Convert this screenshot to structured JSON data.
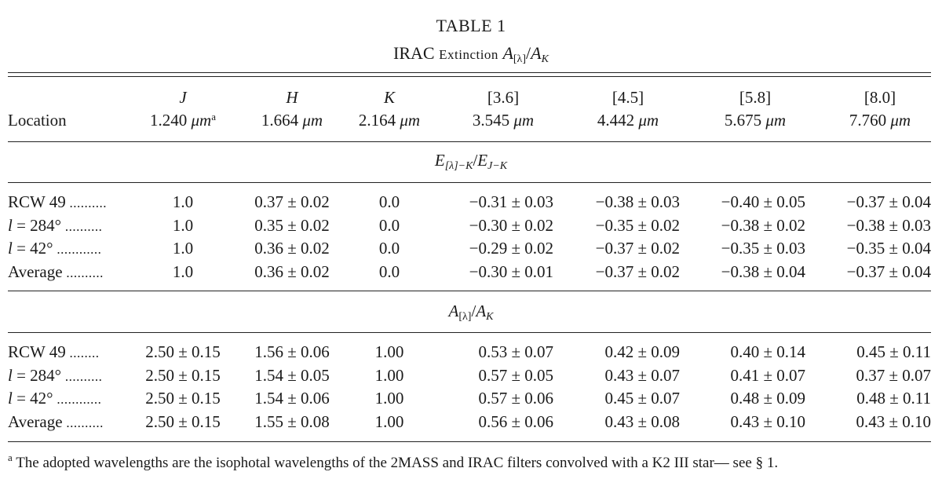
{
  "title": "TABLE 1",
  "subtitle": {
    "lead": "IRAC ",
    "smallcaps": "Extinction",
    "formula_a": "A",
    "formula_a_sub": "[λ]",
    "slash": "/",
    "formula_k": "A",
    "formula_k_sub": "K"
  },
  "header": {
    "location": "Location",
    "columns": [
      {
        "band": "J",
        "wl": "1.240",
        "unit": "μm",
        "note": "a"
      },
      {
        "band": "H",
        "wl": "1.664",
        "unit": "μm"
      },
      {
        "band": "K",
        "wl": "2.164",
        "unit": "μm"
      },
      {
        "band": "[3.6]",
        "wl": "3.545",
        "unit": "μm"
      },
      {
        "band": "[4.5]",
        "wl": "4.442",
        "unit": "μm"
      },
      {
        "band": "[5.8]",
        "wl": "5.675",
        "unit": "μm"
      },
      {
        "band": "[8.0]",
        "wl": "7.760",
        "unit": "μm"
      }
    ]
  },
  "section1": {
    "e": "E",
    "e_sub": "[λ]−K",
    "slash": "/",
    "e2": "E",
    "e2_sub": "J−K",
    "rows": [
      {
        "loc": "RCW 49",
        "dots": "..........",
        "vals": [
          "1.0",
          "0.37 ± 0.02",
          "0.0",
          "−0.31 ± 0.03",
          "−0.38 ± 0.03",
          "−0.40 ± 0.05",
          "−0.37 ± 0.04"
        ]
      },
      {
        "loc": "l = 284°",
        "dots": "..........",
        "vals": [
          "1.0",
          "0.35 ± 0.02",
          "0.0",
          "−0.30 ± 0.02",
          "−0.35 ± 0.02",
          "−0.38 ± 0.02",
          "−0.38 ± 0.03"
        ]
      },
      {
        "loc": "l = 42°",
        "dots": "............",
        "vals": [
          "1.0",
          "0.36 ± 0.02",
          "0.0",
          "−0.29 ± 0.02",
          "−0.37 ± 0.02",
          "−0.35 ± 0.03",
          "−0.35 ± 0.04"
        ]
      },
      {
        "loc": "Average",
        "dots": "..........",
        "vals": [
          "1.0",
          "0.36 ± 0.02",
          "0.0",
          "−0.30 ± 0.01",
          "−0.37 ± 0.02",
          "−0.38 ± 0.04",
          "−0.37 ± 0.04"
        ]
      }
    ]
  },
  "section2": {
    "a": "A",
    "a_sub": "[λ]",
    "slash": "/",
    "k": "A",
    "k_sub": "K",
    "rows": [
      {
        "loc": "RCW 49",
        "dots": "........",
        "vals": [
          "2.50 ± 0.15",
          "1.56 ± 0.06",
          "1.00",
          "0.53 ± 0.07",
          "0.42 ± 0.09",
          "0.40 ± 0.14",
          "0.45 ± 0.11"
        ]
      },
      {
        "loc": "l = 284°",
        "dots": "..........",
        "vals": [
          "2.50 ± 0.15",
          "1.54 ± 0.05",
          "1.00",
          "0.57 ± 0.05",
          "0.43 ± 0.07",
          "0.41 ± 0.07",
          "0.37 ± 0.07"
        ]
      },
      {
        "loc": "l = 42°",
        "dots": "............",
        "vals": [
          "2.50 ± 0.15",
          "1.54 ± 0.06",
          "1.00",
          "0.57 ± 0.06",
          "0.45 ± 0.07",
          "0.48 ± 0.09",
          "0.48 ± 0.11"
        ]
      },
      {
        "loc": "Average",
        "dots": "..........",
        "vals": [
          "2.50 ± 0.15",
          "1.55 ± 0.08",
          "1.00",
          "0.56 ± 0.06",
          "0.43 ± 0.08",
          "0.43 ± 0.10",
          "0.43 ± 0.10"
        ]
      }
    ]
  },
  "footnote": {
    "mark": "a",
    "text": " The adopted wavelengths are the isophotal wavelengths of the 2MASS and IRAC filters convolved with a K2 III star— see § 1."
  }
}
